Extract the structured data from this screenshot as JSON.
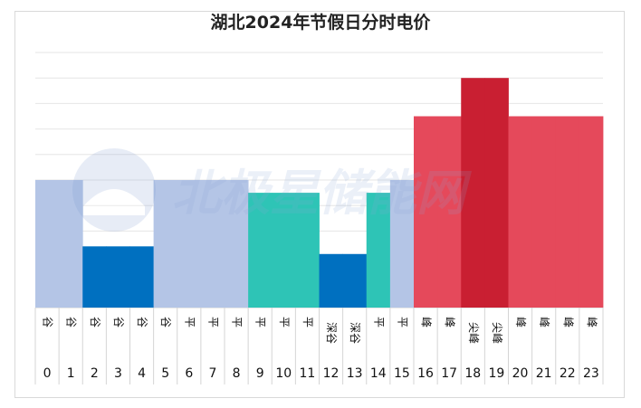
{
  "chart_data": {
    "type": "bar",
    "title": "湖北2024年节假日分时电价",
    "categories": [
      "0",
      "1",
      "2",
      "3",
      "4",
      "5",
      "6",
      "7",
      "8",
      "9",
      "10",
      "11",
      "12",
      "13",
      "14",
      "15",
      "16",
      "17",
      "18",
      "19",
      "20",
      "21",
      "22",
      "23"
    ],
    "period_labels": [
      "谷",
      "谷",
      "谷",
      "谷",
      "谷",
      "谷",
      "平",
      "平",
      "平",
      "平",
      "平",
      "平",
      "深谷",
      "深谷",
      "平",
      "平",
      "峰",
      "峰",
      "尖峰",
      "尖峰",
      "峰",
      "峰",
      "峰",
      "峰"
    ],
    "values": [
      5,
      5,
      2.4,
      2.4,
      2.4,
      5,
      5,
      5,
      5,
      4.5,
      4.5,
      4.5,
      2.1,
      2.1,
      4.5,
      5,
      7.5,
      7.5,
      9,
      9,
      7.5,
      7.5,
      7.5,
      7.5
    ],
    "ylim": [
      0,
      10
    ],
    "grid": true,
    "colors": [
      "#b4c5e6",
      "#b4c5e6",
      "#0070c0",
      "#0070c0",
      "#0070c0",
      "#b4c5e6",
      "#b4c5e6",
      "#b4c5e6",
      "#b4c5e6",
      "#2ec4b6",
      "#2ec4b6",
      "#2ec4b6",
      "#0070c0",
      "#0070c0",
      "#2ec4b6",
      "#b4c5e6",
      "#e5495b",
      "#e5495b",
      "#c91f32",
      "#c91f32",
      "#e5495b",
      "#e5495b",
      "#e5495b",
      "#e5495b"
    ]
  },
  "watermark": {
    "text": "北极星储能网"
  }
}
